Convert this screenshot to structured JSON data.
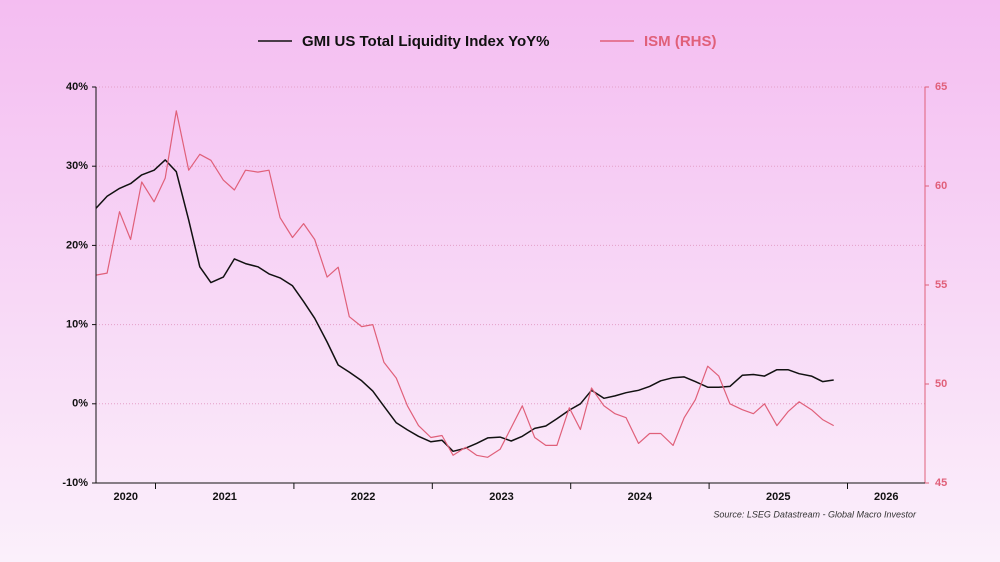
{
  "chart_data": {
    "type": "line",
    "x": [
      2020.57,
      2020.65,
      2020.74,
      2020.82,
      2020.9,
      2020.99,
      2021.07,
      2021.15,
      2021.24,
      2021.32,
      2021.4,
      2021.49,
      2021.57,
      2021.65,
      2021.74,
      2021.82,
      2021.9,
      2021.99,
      2022.07,
      2022.15,
      2022.24,
      2022.32,
      2022.4,
      2022.49,
      2022.57,
      2022.65,
      2022.74,
      2022.82,
      2022.9,
      2022.99,
      2023.07,
      2023.15,
      2023.24,
      2023.32,
      2023.4,
      2023.49,
      2023.57,
      2023.65,
      2023.74,
      2023.82,
      2023.9,
      2023.99,
      2024.07,
      2024.15,
      2024.24,
      2024.32,
      2024.4,
      2024.49,
      2024.57,
      2024.65,
      2024.74,
      2024.82,
      2024.9,
      2024.99,
      2025.07,
      2025.15,
      2025.24,
      2025.32,
      2025.4,
      2025.49,
      2025.57,
      2025.65,
      2025.74,
      2025.82,
      2025.9
    ],
    "series": [
      {
        "name": "GMI US Total Liquidity Index YoY%",
        "color": "#111111",
        "axis": "y",
        "values": [
          24.7,
          26.2,
          27.2,
          27.8,
          28.9,
          29.5,
          30.8,
          29.3,
          23.2,
          17.3,
          15.3,
          16.0,
          18.3,
          17.7,
          17.3,
          16.4,
          15.9,
          14.9,
          12.9,
          10.8,
          7.8,
          4.9,
          4.0,
          2.9,
          1.6,
          -0.3,
          -2.4,
          -3.3,
          -4.1,
          -4.8,
          -4.6,
          -6.0,
          -5.6,
          -5.0,
          -4.3,
          -4.2,
          -4.7,
          -4.1,
          -3.1,
          -2.8,
          -1.9,
          -0.8,
          0.0,
          1.7,
          0.7,
          1.0,
          1.4,
          1.7,
          2.2,
          2.9,
          3.3,
          3.4,
          2.8,
          2.1,
          2.1,
          2.2,
          3.6,
          3.7,
          3.5,
          4.3,
          4.3,
          3.8,
          3.5,
          2.8,
          3.0
        ]
      },
      {
        "name": "ISM (RHS)",
        "color": "#e0607a",
        "axis": "y2",
        "values": [
          55.5,
          55.6,
          58.7,
          57.3,
          60.2,
          59.2,
          60.4,
          63.8,
          60.8,
          61.6,
          61.3,
          60.3,
          59.8,
          60.8,
          60.7,
          60.8,
          58.4,
          57.4,
          58.1,
          57.3,
          55.4,
          55.9,
          53.4,
          52.9,
          53.0,
          51.1,
          50.3,
          48.9,
          47.9,
          47.3,
          47.4,
          46.4,
          46.8,
          46.4,
          46.3,
          46.7,
          47.8,
          48.9,
          47.3,
          46.9,
          46.9,
          48.8,
          47.7,
          49.8,
          48.9,
          48.5,
          48.3,
          47.0,
          47.5,
          47.5,
          46.9,
          48.3,
          49.2,
          50.9,
          50.4,
          49.0,
          48.7,
          48.5,
          49.0,
          47.9,
          48.6,
          49.1,
          48.7,
          48.2,
          47.9
        ]
      }
    ],
    "xlim": [
      2020.57,
      2026.56
    ],
    "xticks": [
      {
        "value": 2020.5,
        "label": "2020"
      },
      {
        "value": 2021.5,
        "label": "2021"
      },
      {
        "value": 2022.5,
        "label": "2022"
      },
      {
        "value": 2023.5,
        "label": "2023"
      },
      {
        "value": 2024.5,
        "label": "2024"
      },
      {
        "value": 2025.5,
        "label": "2025"
      },
      {
        "value": 2026.5,
        "label": "2026"
      }
    ],
    "ylim": [
      -10,
      40
    ],
    "yticks": [
      {
        "value": -10,
        "label": "-10%"
      },
      {
        "value": 0,
        "label": "0%"
      },
      {
        "value": 10,
        "label": "10%"
      },
      {
        "value": 20,
        "label": "20%"
      },
      {
        "value": 30,
        "label": "30%"
      },
      {
        "value": 40,
        "label": "40%"
      }
    ],
    "y2lim": [
      45,
      65
    ],
    "y2ticks": [
      45,
      50,
      55,
      60,
      65
    ],
    "grid": true,
    "legend": "top",
    "annotation": "Source: LSEG Datastream - Global Macro Investor"
  }
}
